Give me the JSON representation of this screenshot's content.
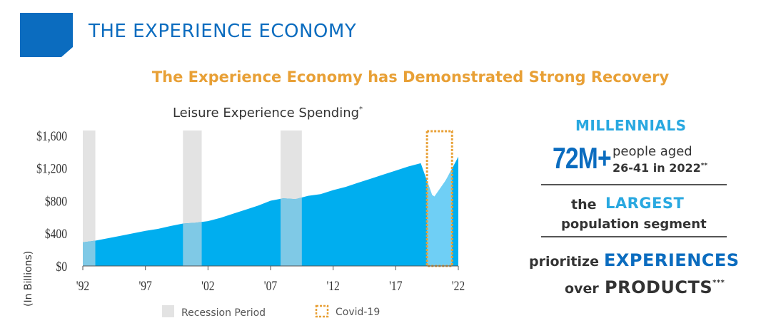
{
  "header": {
    "title": "THE EXPERIENCE ECONOMY",
    "subtitle": "The Experience Economy has Demonstrated Strong Recovery"
  },
  "colors": {
    "brand_blue": "#0b6cbf",
    "area_blue": "#00aeef",
    "light_blue": "#29a8e0",
    "orange": "#e8a036",
    "recession_gray": "#e3e3e3",
    "text_dark": "#333333"
  },
  "chart_data": {
    "type": "area",
    "title": "Leisure Experience Spending",
    "title_footnote": "*",
    "ylabel": "(In Billions)",
    "xlabel": "",
    "x_ticks": [
      "'92",
      "'97",
      "'02",
      "'07",
      "'12",
      "'17",
      "'22"
    ],
    "y_ticks": [
      "$0",
      "$400",
      "$800",
      "$1,200",
      "$1,600"
    ],
    "ylim": [
      0,
      1600
    ],
    "xlim": [
      1992,
      2022
    ],
    "x": [
      1992,
      1993,
      1994,
      1995,
      1996,
      1997,
      1998,
      1999,
      2000,
      2001,
      2002,
      2003,
      2004,
      2005,
      2006,
      2007,
      2008,
      2009,
      2010,
      2011,
      2012,
      2013,
      2014,
      2015,
      2016,
      2017,
      2018,
      2019,
      2020,
      2021,
      2022
    ],
    "values": [
      290,
      310,
      340,
      370,
      400,
      430,
      455,
      490,
      520,
      530,
      550,
      590,
      640,
      690,
      740,
      800,
      830,
      820,
      860,
      880,
      930,
      970,
      1020,
      1070,
      1120,
      1170,
      1220,
      1260,
      830,
      1050,
      1340
    ],
    "recession_periods": [
      [
        1992,
        1993
      ],
      [
        2000,
        2001.5
      ],
      [
        2007.8,
        2009.5
      ]
    ],
    "covid_period": [
      2019.5,
      2021.5
    ],
    "legend": [
      {
        "label": "Recession Period",
        "swatch": "recession"
      },
      {
        "label": "Covid-19",
        "swatch": "covid"
      }
    ],
    "legend_position": "bottom",
    "grid": false
  },
  "millennials": {
    "heading": "MILLENNIALS",
    "big_stat": "72M+",
    "desc_line1": "people aged",
    "desc_line2": "26-41 in 2022",
    "desc_footnote": "**",
    "the": "the",
    "largest": "LARGEST",
    "segment": "population segment",
    "prioritize": "prioritize",
    "experiences": "EXPERIENCES",
    "over": "over",
    "products": "PRODUCTS",
    "products_footnote": "***"
  }
}
